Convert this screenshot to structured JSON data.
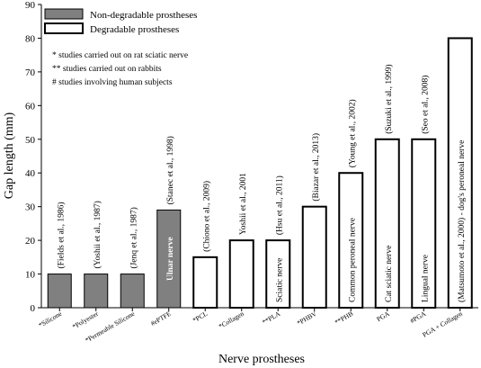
{
  "chart_data": {
    "type": "bar",
    "xlabel": "Nerve prostheses",
    "ylabel": "Gap length (mm)",
    "ylim": [
      0,
      90
    ],
    "yticks": [
      0,
      10,
      20,
      30,
      40,
      50,
      60,
      70,
      80,
      90
    ],
    "legend": [
      {
        "name": "Non-degradable prostheses",
        "style": "filled"
      },
      {
        "name": "Degradable prostheses",
        "style": "outlined"
      }
    ],
    "notes": [
      "*   studies carried out on rat sciatic nerve",
      "**  studies carried out on rabbits",
      "#   studies involving human subjects"
    ],
    "bars": [
      {
        "category": "*Silicone",
        "value": 10,
        "group": "Non-degradable prostheses",
        "label": "(Fields et al., 1986)",
        "inner_label": ""
      },
      {
        "category": "*Polyester",
        "value": 10,
        "group": "Non-degradable prostheses",
        "label": "(Yoshii et al., 1987)",
        "inner_label": ""
      },
      {
        "category": "*Permeable Silicone",
        "value": 10,
        "group": "Non-degradable prostheses",
        "label": "(Jenq et al., 1987)",
        "inner_label": ""
      },
      {
        "category": "#ePTFE",
        "value": 29,
        "group": "Non-degradable prostheses",
        "label": "(Stanec et al., 1998)",
        "inner_label": "Ulnar nerve"
      },
      {
        "category": "*PCL",
        "value": 15,
        "group": "Degradable prostheses",
        "label": "(Chiono et al., 2009)",
        "inner_label": ""
      },
      {
        "category": "*Collagen",
        "value": 20,
        "group": "Degradable prostheses",
        "label": "Yoshii et al., 2001",
        "inner_label": ""
      },
      {
        "category": "**PLA",
        "value": 20,
        "group": "Degradable prostheses",
        "label": "(Hsu et al., 2011)",
        "inner_label": "Sciatic nerve"
      },
      {
        "category": "*PHBV",
        "value": 30,
        "group": "Degradable prostheses",
        "label": "(Biazar et al., 2013)",
        "inner_label": ""
      },
      {
        "category": "**PHB",
        "value": 40,
        "group": "Degradable prostheses",
        "label": "(Young et al., 2002)",
        "inner_label": "Common peroneal nerve"
      },
      {
        "category": "PGA",
        "value": 50,
        "group": "Degradable prostheses",
        "label": "(Suzuki et al., 1999)",
        "inner_label": "Cat sciatic nerve"
      },
      {
        "category": "#PGA",
        "value": 50,
        "group": "Degradable prostheses",
        "label": "(Seo et al., 2008)",
        "inner_label": "Lingual nerve"
      },
      {
        "category": "PGA + Collagen",
        "value": 80,
        "group": "Degradable prostheses",
        "label": "",
        "inner_label": "(Matsumoto et al., 2000) - dog's peroneal nerve"
      }
    ],
    "colors": {
      "filled": "#808080",
      "outlined": "#ffffff",
      "stroke": "#000000"
    }
  }
}
